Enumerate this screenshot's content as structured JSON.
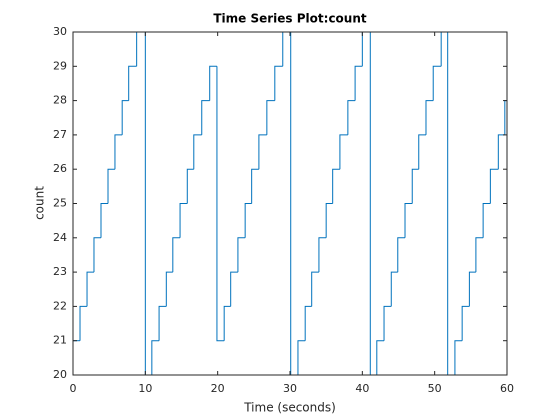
{
  "chart_data": {
    "type": "stairs",
    "title": "Time Series Plot:count",
    "x_label": "Time (seconds)",
    "y_label": "count",
    "xlim": [
      0,
      60
    ],
    "ylim": [
      20,
      30
    ],
    "xticks": [
      0,
      10,
      20,
      30,
      40,
      50,
      60
    ],
    "yticks": [
      20,
      21,
      22,
      23,
      24,
      25,
      26,
      27,
      28,
      29,
      30
    ],
    "x": [
      0,
      0.97,
      1.94,
      2.9,
      3.87,
      4.84,
      5.8,
      6.8,
      7.7,
      8.8,
      10.0,
      10.9,
      11.9,
      12.9,
      13.8,
      14.8,
      15.8,
      16.7,
      17.8,
      18.9,
      19.9,
      20.9,
      21.8,
      22.8,
      23.8,
      24.7,
      25.7,
      26.8,
      27.9,
      29.0,
      30.1,
      31.1,
      32.1,
      33.0,
      34.0,
      35.0,
      35.9,
      36.9,
      38.0,
      39.0,
      40.0,
      41.1,
      42.0,
      43.0,
      44.0,
      44.9,
      45.9,
      46.9,
      47.8,
      48.8,
      49.8,
      50.9,
      51.8,
      52.8,
      53.8,
      54.8,
      55.7,
      56.7,
      57.7,
      58.8,
      59.7
    ],
    "series": [
      {
        "name": "count",
        "color": "#0072bd",
        "values": [
          21,
          22,
          23,
          24,
          25,
          26,
          27,
          28,
          29,
          30,
          20,
          21,
          22,
          23,
          24,
          25,
          26,
          27,
          28,
          29,
          21,
          22,
          23,
          24,
          25,
          26,
          27,
          28,
          29,
          30,
          20,
          21,
          22,
          23,
          24,
          25,
          26,
          27,
          28,
          29,
          30,
          20,
          21,
          22,
          23,
          24,
          25,
          26,
          27,
          28,
          29,
          30,
          20,
          21,
          22,
          23,
          24,
          25,
          26,
          27,
          28
        ]
      }
    ]
  }
}
